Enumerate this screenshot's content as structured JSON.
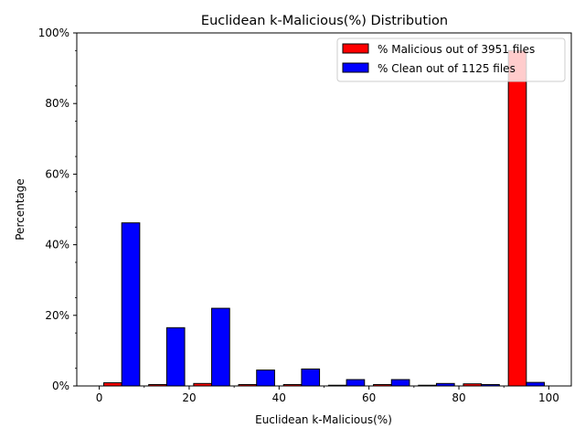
{
  "chart_data": {
    "type": "bar",
    "title": "Euclidean k-Malicious(%) Distribution",
    "xlabel": "Euclidean k-Malicious(%)",
    "ylabel": "Percentage",
    "xlim": [
      -5,
      105
    ],
    "ylim": [
      0,
      100
    ],
    "x_ticks": [
      0,
      20,
      40,
      60,
      80,
      100
    ],
    "y_ticks": [
      0,
      20,
      40,
      60,
      80,
      100
    ],
    "y_tick_labels": [
      "0%",
      "20%",
      "40%",
      "60%",
      "80%",
      "100%"
    ],
    "legend_position": "top-right",
    "bins": [
      [
        0,
        10
      ],
      [
        10,
        20
      ],
      [
        20,
        30
      ],
      [
        30,
        40
      ],
      [
        40,
        50
      ],
      [
        50,
        60
      ],
      [
        60,
        70
      ],
      [
        70,
        80
      ],
      [
        80,
        90
      ],
      [
        90,
        100
      ]
    ],
    "series": [
      {
        "name": "% Malicious out of 3951 files",
        "color": "#ff0000",
        "values": [
          0.9,
          0.4,
          0.7,
          0.4,
          0.4,
          0.2,
          0.4,
          0.2,
          0.6,
          95.0
        ]
      },
      {
        "name": "% Clean out of 1125 files",
        "color": "#0000ff",
        "values": [
          46.2,
          16.5,
          22.0,
          4.5,
          4.8,
          1.8,
          1.8,
          0.7,
          0.4,
          1.0
        ]
      }
    ]
  }
}
